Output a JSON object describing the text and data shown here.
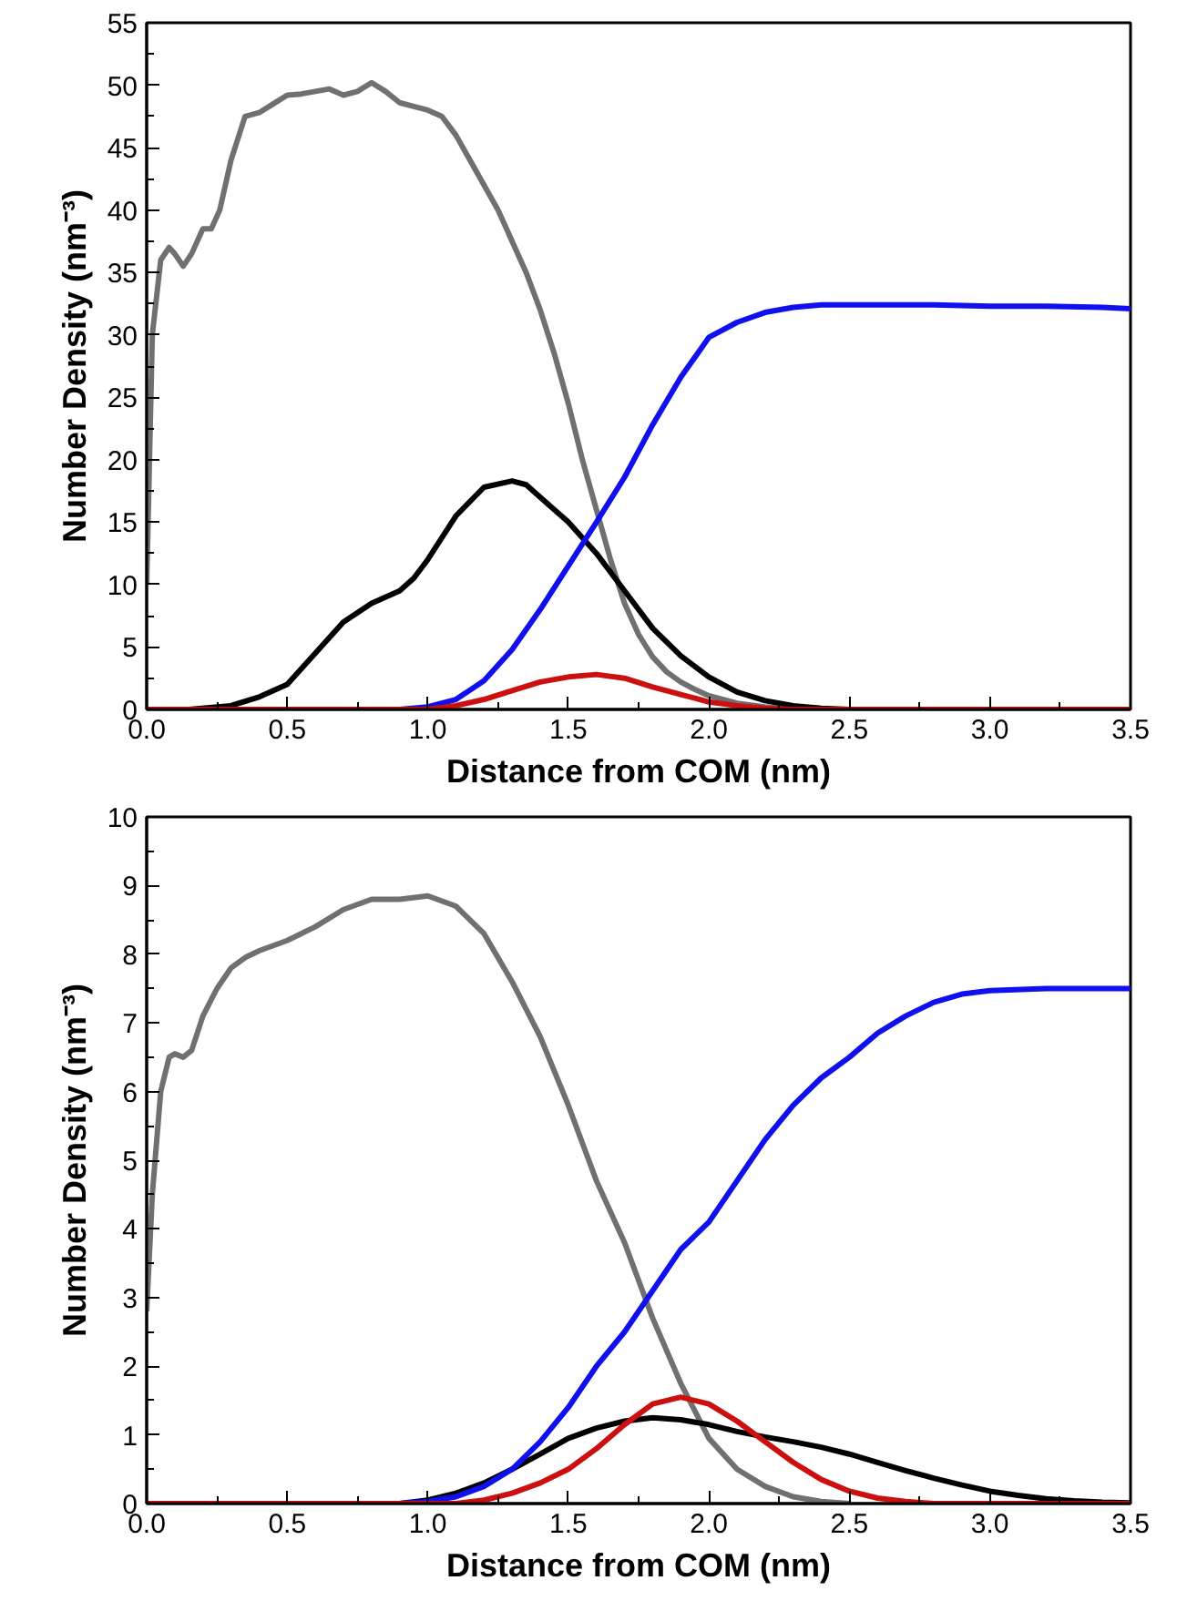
{
  "chart_data": [
    {
      "type": "line",
      "xlabel": "Distance from COM (nm)",
      "ylabel": "Number Density (nm⁻³)",
      "xlim": [
        0,
        3.5
      ],
      "ylim": [
        0,
        55
      ],
      "xticks": [
        {
          "value": 0,
          "label": "0.0"
        },
        {
          "value": 0.5,
          "label": "0.5"
        },
        {
          "value": 1,
          "label": "1.0"
        },
        {
          "value": 1.5,
          "label": "1.5"
        },
        {
          "value": 2,
          "label": "2.0"
        },
        {
          "value": 2.5,
          "label": "2.5"
        },
        {
          "value": 3,
          "label": "3.0"
        },
        {
          "value": 3.5,
          "label": "3.5"
        }
      ],
      "yticks": [
        0,
        5,
        10,
        15,
        20,
        25,
        30,
        35,
        40,
        45,
        50,
        55
      ],
      "grid": false,
      "line_style": "solid",
      "series": [
        {
          "color": "#707070",
          "x": [
            0,
            0.02,
            0.05,
            0.08,
            0.1,
            0.13,
            0.16,
            0.2,
            0.23,
            0.26,
            0.3,
            0.35,
            0.4,
            0.45,
            0.5,
            0.55,
            0.6,
            0.65,
            0.7,
            0.75,
            0.8,
            0.85,
            0.9,
            0.95,
            1.0,
            1.05,
            1.1,
            1.15,
            1.2,
            1.25,
            1.3,
            1.35,
            1.4,
            1.45,
            1.5,
            1.55,
            1.6,
            1.65,
            1.7,
            1.75,
            1.8,
            1.85,
            1.9,
            1.95,
            2.0,
            2.1,
            2.2,
            2.3,
            2.4
          ],
          "values": [
            10,
            30,
            36,
            37,
            36.5,
            35.5,
            36.5,
            38.5,
            38.5,
            40,
            44,
            47.5,
            47.8,
            48.5,
            49.2,
            49.3,
            49.5,
            49.7,
            49.2,
            49.5,
            50.2,
            49.5,
            48.6,
            48.3,
            48,
            47.5,
            46,
            44,
            42,
            40,
            37.5,
            35,
            32,
            28.5,
            24.5,
            20,
            16,
            12,
            8.5,
            6,
            4.2,
            3,
            2.2,
            1.6,
            1.1,
            0.5,
            0.2,
            0,
            0
          ]
        },
        {
          "color": "#000000",
          "x": [
            0,
            0.15,
            0.3,
            0.4,
            0.5,
            0.6,
            0.7,
            0.8,
            0.9,
            0.95,
            1.0,
            1.1,
            1.2,
            1.3,
            1.35,
            1.4,
            1.5,
            1.6,
            1.7,
            1.8,
            1.9,
            2.0,
            2.1,
            2.2,
            2.3,
            2.4,
            2.5
          ],
          "values": [
            0,
            0,
            0.3,
            1,
            2,
            4.5,
            7,
            8.5,
            9.5,
            10.5,
            12,
            15.5,
            17.8,
            18.3,
            18,
            17,
            15,
            12.5,
            9.5,
            6.5,
            4.3,
            2.6,
            1.4,
            0.7,
            0.3,
            0.1,
            0
          ]
        },
        {
          "color": "#1010ee",
          "x": [
            0,
            0.9,
            1.0,
            1.1,
            1.2,
            1.3,
            1.4,
            1.5,
            1.6,
            1.7,
            1.8,
            1.9,
            2.0,
            2.1,
            2.2,
            2.3,
            2.4,
            2.6,
            2.8,
            3.0,
            3.2,
            3.4,
            3.5
          ],
          "values": [
            0,
            0,
            0.2,
            0.8,
            2.3,
            4.8,
            8,
            11.5,
            15,
            18.6,
            22.8,
            26.6,
            29.8,
            31,
            31.8,
            32.2,
            32.4,
            32.4,
            32.4,
            32.3,
            32.3,
            32.2,
            32.1
          ]
        },
        {
          "color": "#cc1010",
          "x": [
            0,
            1.0,
            1.1,
            1.2,
            1.3,
            1.4,
            1.5,
            1.6,
            1.7,
            1.8,
            1.9,
            2.0,
            2.1,
            2.2,
            2.3,
            3.5
          ],
          "values": [
            0,
            0,
            0.3,
            0.8,
            1.5,
            2.2,
            2.6,
            2.8,
            2.5,
            1.8,
            1.2,
            0.6,
            0.3,
            0.1,
            0,
            0
          ]
        }
      ]
    },
    {
      "type": "line",
      "xlabel": "Distance from COM (nm)",
      "ylabel": "Number Density (nm⁻³)",
      "xlim": [
        0,
        3.5
      ],
      "ylim": [
        0,
        10
      ],
      "xticks": [
        {
          "value": 0,
          "label": "0.0"
        },
        {
          "value": 0.5,
          "label": "0.5"
        },
        {
          "value": 1,
          "label": "1.0"
        },
        {
          "value": 1.5,
          "label": "1.5"
        },
        {
          "value": 2,
          "label": "2.0"
        },
        {
          "value": 2.5,
          "label": "2.5"
        },
        {
          "value": 3,
          "label": "3.0"
        },
        {
          "value": 3.5,
          "label": "3.5"
        }
      ],
      "yticks": [
        0,
        1,
        2,
        3,
        4,
        5,
        6,
        7,
        8,
        9,
        10
      ],
      "grid": false,
      "line_style": "solid",
      "series": [
        {
          "color": "#707070",
          "x": [
            0,
            0.02,
            0.05,
            0.08,
            0.1,
            0.13,
            0.16,
            0.2,
            0.25,
            0.3,
            0.35,
            0.4,
            0.5,
            0.6,
            0.7,
            0.8,
            0.9,
            1.0,
            1.1,
            1.2,
            1.3,
            1.4,
            1.5,
            1.6,
            1.7,
            1.8,
            1.9,
            2.0,
            2.1,
            2.2,
            2.3,
            2.4,
            2.5
          ],
          "values": [
            2.8,
            4.5,
            6,
            6.5,
            6.55,
            6.5,
            6.6,
            7.1,
            7.5,
            7.8,
            7.95,
            8.05,
            8.2,
            8.4,
            8.65,
            8.8,
            8.8,
            8.85,
            8.7,
            8.3,
            7.6,
            6.8,
            5.8,
            4.7,
            3.8,
            2.7,
            1.75,
            0.95,
            0.5,
            0.25,
            0.1,
            0.03,
            0
          ]
        },
        {
          "color": "#000000",
          "x": [
            0,
            0.9,
            1.0,
            1.1,
            1.2,
            1.3,
            1.4,
            1.5,
            1.6,
            1.7,
            1.8,
            1.9,
            2.0,
            2.1,
            2.2,
            2.3,
            2.4,
            2.5,
            2.6,
            2.7,
            2.8,
            2.9,
            3.0,
            3.1,
            3.2,
            3.3,
            3.4,
            3.5
          ],
          "values": [
            0,
            0,
            0.05,
            0.15,
            0.3,
            0.5,
            0.72,
            0.95,
            1.1,
            1.2,
            1.25,
            1.22,
            1.15,
            1.05,
            0.97,
            0.9,
            0.82,
            0.72,
            0.6,
            0.48,
            0.37,
            0.27,
            0.18,
            0.12,
            0.07,
            0.04,
            0.02,
            0.01
          ]
        },
        {
          "color": "#1010ee",
          "x": [
            0,
            0.9,
            1.0,
            1.1,
            1.2,
            1.3,
            1.4,
            1.5,
            1.6,
            1.7,
            1.8,
            1.9,
            2.0,
            2.1,
            2.2,
            2.3,
            2.4,
            2.5,
            2.6,
            2.7,
            2.8,
            2.9,
            3.0,
            3.2,
            3.5
          ],
          "values": [
            0,
            0,
            0.03,
            0.1,
            0.25,
            0.5,
            0.9,
            1.4,
            2,
            2.5,
            3.1,
            3.7,
            4.1,
            4.7,
            5.3,
            5.8,
            6.2,
            6.5,
            6.85,
            7.1,
            7.3,
            7.42,
            7.47,
            7.5,
            7.5
          ]
        },
        {
          "color": "#cc1010",
          "x": [
            0,
            1.1,
            1.2,
            1.3,
            1.4,
            1.5,
            1.6,
            1.7,
            1.8,
            1.9,
            2.0,
            2.1,
            2.2,
            2.3,
            2.4,
            2.5,
            2.6,
            2.7,
            2.8,
            3.5
          ],
          "values": [
            0,
            0,
            0.05,
            0.15,
            0.3,
            0.5,
            0.8,
            1.15,
            1.45,
            1.55,
            1.45,
            1.2,
            0.9,
            0.6,
            0.35,
            0.18,
            0.08,
            0.03,
            0,
            0
          ]
        }
      ]
    }
  ]
}
